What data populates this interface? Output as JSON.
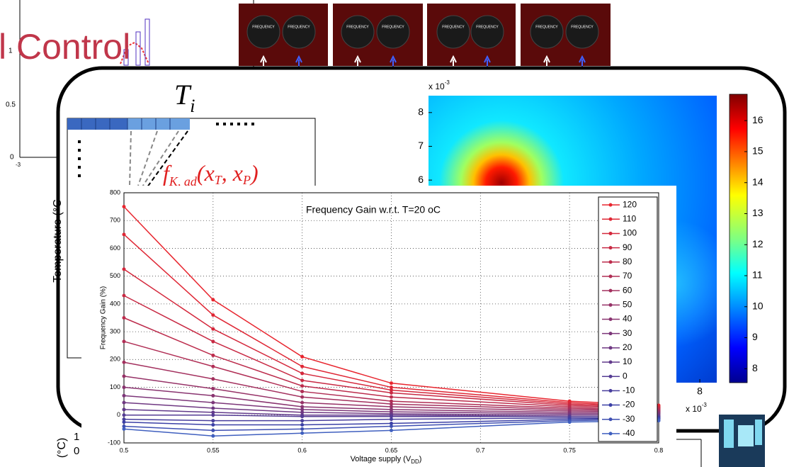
{
  "background": {
    "slide_title": "l Control",
    "small_chart_yticks": [
      "1",
      "0.5",
      "0"
    ],
    "small_chart_xtick": "-3",
    "knob_label": "FREQUENCY",
    "left_chart_ylabel": "Temperature (°C",
    "ti": {
      "base": "T",
      "sub": "i"
    },
    "function": {
      "f": "f",
      "sub1": "K, ad",
      "open": "(x",
      "sub2": "T",
      "mid": ", x",
      "sub3": "P",
      "close": ")"
    },
    "bottom_ylabel": "(°C)",
    "bottom_ticks": [
      "1",
      "0"
    ]
  },
  "chart_data": [
    {
      "type": "line",
      "title": "Frequency Gain w.r.t. T=20 oC",
      "xlabel": {
        "base": "Voltage supply (V",
        "sub": "DD",
        "close": ")"
      },
      "ylabel": "Frequency Gain (%)",
      "x": [
        0.5,
        0.55,
        0.6,
        0.65,
        0.75,
        0.8
      ],
      "xlim": [
        0.5,
        0.8
      ],
      "xticks": [
        0.5,
        0.55,
        0.6,
        0.65,
        0.7,
        0.75,
        0.8
      ],
      "ylim": [
        -100,
        800
      ],
      "yticks": [
        -100,
        0,
        100,
        200,
        300,
        400,
        500,
        600,
        700,
        800
      ],
      "grid": true,
      "legend": "upper right",
      "series": [
        {
          "name": "120",
          "color": "#e8262f",
          "values": [
            750,
            415,
            210,
            115,
            50,
            35
          ]
        },
        {
          "name": "110",
          "color": "#df2735",
          "values": [
            650,
            360,
            175,
            100,
            45,
            30
          ]
        },
        {
          "name": "100",
          "color": "#d4283c",
          "values": [
            525,
            310,
            150,
            90,
            40,
            28
          ]
        },
        {
          "name": "90",
          "color": "#c82a44",
          "values": [
            430,
            265,
            125,
            80,
            35,
            25
          ]
        },
        {
          "name": "80",
          "color": "#bc2c4c",
          "values": [
            350,
            215,
            105,
            65,
            30,
            22
          ]
        },
        {
          "name": "70",
          "color": "#b02e55",
          "values": [
            265,
            175,
            85,
            50,
            25,
            18
          ]
        },
        {
          "name": "60",
          "color": "#a3305e",
          "values": [
            190,
            130,
            65,
            40,
            20,
            15
          ]
        },
        {
          "name": "50",
          "color": "#963267",
          "values": [
            140,
            95,
            45,
            30,
            15,
            12
          ]
        },
        {
          "name": "40",
          "color": "#893470",
          "values": [
            100,
            70,
            30,
            20,
            10,
            8
          ]
        },
        {
          "name": "30",
          "color": "#7c3679",
          "values": [
            70,
            45,
            20,
            12,
            5,
            5
          ]
        },
        {
          "name": "20",
          "color": "#6f3882",
          "values": [
            45,
            25,
            10,
            5,
            0,
            0
          ]
        },
        {
          "name": "10",
          "color": "#623a8b",
          "values": [
            20,
            10,
            0,
            0,
            -5,
            -5
          ]
        },
        {
          "name": "0",
          "color": "#553c94",
          "values": [
            0,
            0,
            -5,
            -5,
            -5,
            -5
          ]
        },
        {
          "name": "-10",
          "color": "#483e9d",
          "values": [
            -15,
            -20,
            -20,
            -15,
            -10,
            -10
          ]
        },
        {
          "name": "-20",
          "color": "#3b40a6",
          "values": [
            -25,
            -35,
            -35,
            -30,
            -15,
            -12
          ]
        },
        {
          "name": "-30",
          "color": "#3e4fb2",
          "values": [
            -40,
            -55,
            -50,
            -40,
            -20,
            -15
          ]
        },
        {
          "name": "-40",
          "color": "#3f5fbf",
          "values": [
            -50,
            -75,
            -65,
            -55,
            -25,
            -20
          ]
        }
      ]
    },
    {
      "type": "heatmap",
      "xlim": [
        0,
        8.5
      ],
      "xticks": [
        8
      ],
      "ylim": [
        0,
        8.5
      ],
      "yticks": [
        6,
        7,
        8
      ],
      "axis_multiplier": {
        "base": "x 10",
        "exponent": "-3"
      },
      "colorbar": {
        "lim": [
          7.55,
          16.85
        ],
        "ticks": [
          8,
          9,
          10,
          11,
          12,
          13,
          14,
          15,
          16
        ]
      }
    }
  ]
}
